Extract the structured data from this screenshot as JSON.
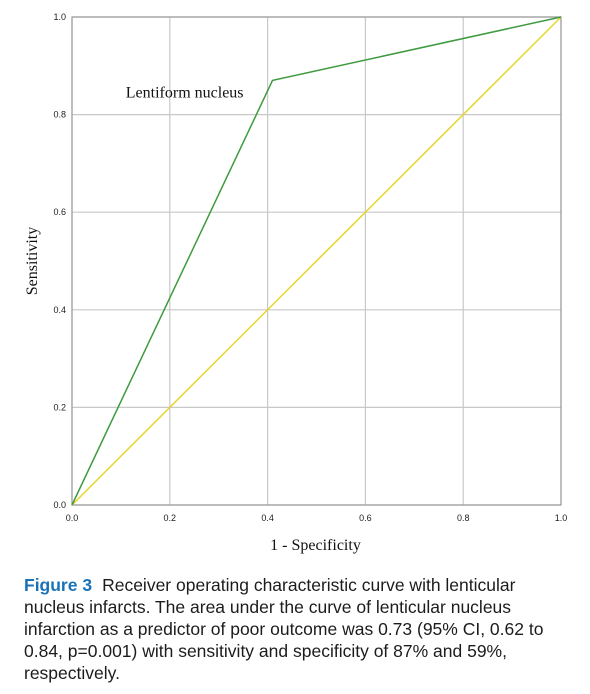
{
  "chart_data": {
    "type": "line",
    "xlabel": "1 - Specificity",
    "ylabel": "Sensitivity",
    "xlim": [
      0,
      1
    ],
    "ylim": [
      0,
      1
    ],
    "x_ticks": [
      "0.0",
      "0.2",
      "0.4",
      "0.6",
      "0.8",
      "1.0"
    ],
    "y_ticks": [
      "0.0",
      "0.2",
      "0.4",
      "0.6",
      "0.8",
      "1.0"
    ],
    "grid": true,
    "series": [
      {
        "color": "#3f9a3f",
        "x": [
          0.0,
          0.41,
          1.0
        ],
        "y": [
          0.0,
          0.87,
          1.0
        ]
      },
      {
        "color": "#e6d62a",
        "x": [
          0.0,
          1.0
        ],
        "y": [
          0.0,
          1.0
        ]
      }
    ],
    "annotations": [
      {
        "text": "Lentiform nucleus",
        "x": 0.11,
        "y": 0.835
      }
    ]
  },
  "caption": {
    "label": "Figure 3",
    "text": "Receiver operating characteristic curve with lenticular nucleus infarcts. The area under the curve of lenticular nucleus infarction as a predictor of poor outcome was 0.73 (95% CI, 0.62 to 0.84, p=0.001) with sensitivity and specificity of 87% and 59%, respectively."
  },
  "colors": {
    "caption_label": "#1a73b8",
    "grid": "#c8c8c8"
  }
}
